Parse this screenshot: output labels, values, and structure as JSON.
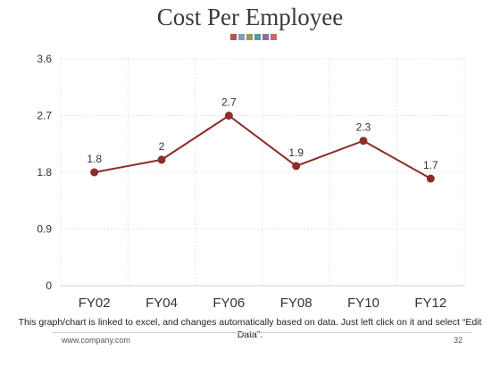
{
  "slide": {
    "title": "Cost Per Employee",
    "deco_colors": [
      "#b5514f",
      "#7f9fc1",
      "#9a9a56",
      "#5a9aa8",
      "#8a6fa5",
      "#c46a66"
    ],
    "footnote": "This graph/chart is linked to excel, and changes automatically based on data. Just left click on it and select “Edit Data”.",
    "website": "www.company.com",
    "page_number": "32"
  },
  "chart_data": {
    "type": "line",
    "categories": [
      "FY02",
      "FY04",
      "FY06",
      "FY08",
      "FY10",
      "FY12"
    ],
    "series": [
      {
        "values": [
          1.8,
          2,
          2.7,
          1.9,
          2.3,
          1.7
        ],
        "color": "#8b2e2a"
      }
    ],
    "data_labels": [
      "1.8",
      "2",
      "2.7",
      "1.9",
      "2.3",
      "1.7"
    ],
    "yticks": [
      "0",
      "0.9",
      "1.8",
      "2.7",
      "3.6"
    ],
    "ylim": [
      0,
      3.6
    ],
    "grid": true,
    "legend": "none"
  }
}
